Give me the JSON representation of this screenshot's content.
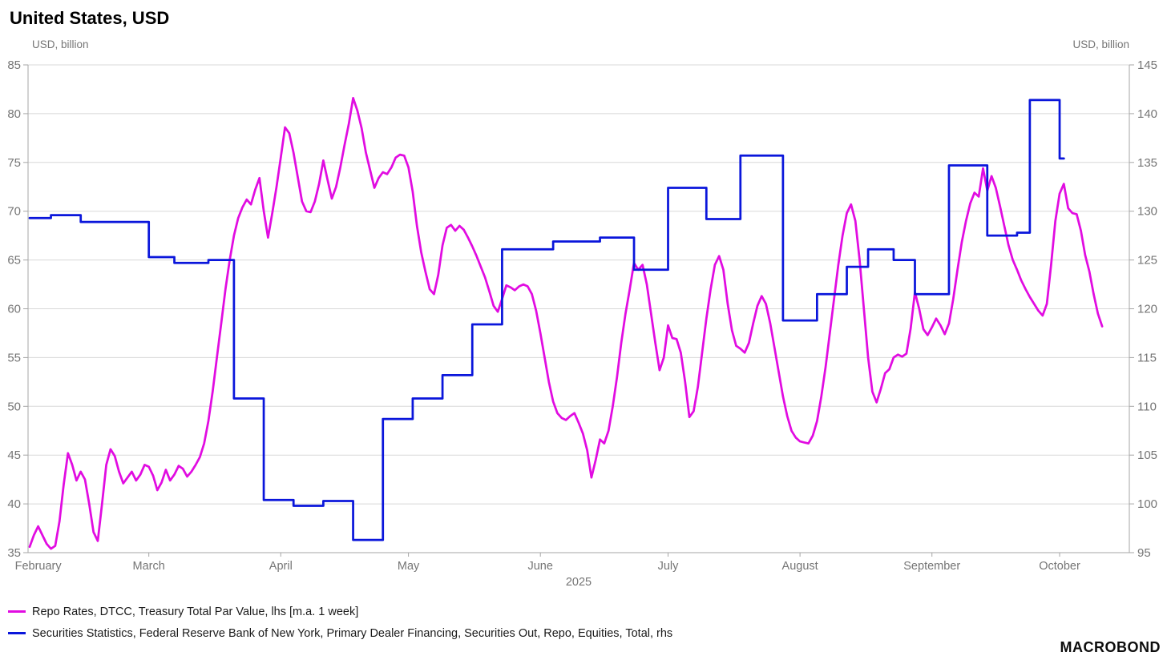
{
  "header": {
    "title": "United States, USD"
  },
  "logo": {
    "text": "MACROBOND"
  },
  "chart_data": {
    "type": "line",
    "title": "United States, USD",
    "grid": "horizontal",
    "legend_position": "bottom-left",
    "left_axis": {
      "label": "USD, billion",
      "min": 35,
      "max": 85,
      "tick_step": 5,
      "ticks": [
        35,
        40,
        45,
        50,
        55,
        60,
        65,
        70,
        75,
        80,
        85
      ]
    },
    "right_axis": {
      "label": "USD, billion",
      "min": 95,
      "max": 145,
      "tick_step": 5,
      "ticks": [
        95,
        100,
        105,
        110,
        115,
        120,
        125,
        130,
        135,
        140,
        145
      ]
    },
    "x_axis": {
      "year_label": "2025",
      "total_days": 258,
      "start": "2025-02-01",
      "months": [
        {
          "label": "February",
          "start_day": 0,
          "label_day": 2
        },
        {
          "label": "March",
          "start_day": 28
        },
        {
          "label": "April",
          "start_day": 59
        },
        {
          "label": "May",
          "start_day": 89
        },
        {
          "label": "June",
          "start_day": 120
        },
        {
          "label": "July",
          "start_day": 150
        },
        {
          "label": "August",
          "start_day": 181
        },
        {
          "label": "September",
          "start_day": 212
        },
        {
          "label": "October",
          "start_day": 242
        }
      ]
    },
    "series": [
      {
        "name": "Repo Rates, DTCC, Treasury Total Par Value, lhs [m.a. 1 week]",
        "color": "#E10CE1",
        "axis": "left",
        "style": "line",
        "start_day": 0,
        "values": [
          35.6,
          36.8,
          37.7,
          36.8,
          35.9,
          35.4,
          35.7,
          38.2,
          42.0,
          45.2,
          44.0,
          42.4,
          43.3,
          42.5,
          40.0,
          37.1,
          36.2,
          40.0,
          44.0,
          45.6,
          44.9,
          43.3,
          42.1,
          42.7,
          43.3,
          42.4,
          43.0,
          44.0,
          43.8,
          42.9,
          41.4,
          42.2,
          43.5,
          42.4,
          43.0,
          43.9,
          43.6,
          42.8,
          43.3,
          44.0,
          44.8,
          46.2,
          48.5,
          51.5,
          55.0,
          58.5,
          62.0,
          65.0,
          67.5,
          69.3,
          70.4,
          71.2,
          70.7,
          72.2,
          73.4,
          70.0,
          67.3,
          69.8,
          72.5,
          75.5,
          78.6,
          78.0,
          76.0,
          73.5,
          71.0,
          70.0,
          69.9,
          71.0,
          72.8,
          75.2,
          73.2,
          71.3,
          72.5,
          74.5,
          76.8,
          79.0,
          81.6,
          80.3,
          78.5,
          76.0,
          74.2,
          72.4,
          73.4,
          74.0,
          73.8,
          74.5,
          75.5,
          75.8,
          75.7,
          74.5,
          72.0,
          68.5,
          65.8,
          63.8,
          62.0,
          61.5,
          63.5,
          66.5,
          68.3,
          68.6,
          68.0,
          68.5,
          68.1,
          67.3,
          66.4,
          65.4,
          64.3,
          63.2,
          61.8,
          60.3,
          59.7,
          61.0,
          62.4,
          62.2,
          61.9,
          62.3,
          62.5,
          62.3,
          61.5,
          59.8,
          57.5,
          55.0,
          52.5,
          50.5,
          49.3,
          48.8,
          48.6,
          49.0,
          49.3,
          48.3,
          47.2,
          45.5,
          42.7,
          44.5,
          46.6,
          46.2,
          47.5,
          50.0,
          53.0,
          56.5,
          59.5,
          62.0,
          64.7,
          64.0,
          64.5,
          62.5,
          59.5,
          56.5,
          53.7,
          55.0,
          58.3,
          57.0,
          56.9,
          55.5,
          52.5,
          48.9,
          49.5,
          52.0,
          55.5,
          59.0,
          62.0,
          64.5,
          65.4,
          64.0,
          60.5,
          57.8,
          56.2,
          55.9,
          55.5,
          56.5,
          58.5,
          60.3,
          61.3,
          60.5,
          58.5,
          56.0,
          53.5,
          51.0,
          49.0,
          47.5,
          46.8,
          46.4,
          46.3,
          46.2,
          47.0,
          48.5,
          51.0,
          54.0,
          57.5,
          61.0,
          64.5,
          67.5,
          69.8,
          70.7,
          69.0,
          65.0,
          60.0,
          55.0,
          51.5,
          50.4,
          51.8,
          53.4,
          53.8,
          55.0,
          55.3,
          55.1,
          55.4,
          58.0,
          61.7,
          60.0,
          57.9,
          57.3,
          58.1,
          59.0,
          58.3,
          57.4,
          58.5,
          61.0,
          64.0,
          66.8,
          69.0,
          70.8,
          71.9,
          71.5,
          74.4,
          72.1,
          73.6,
          72.4,
          70.5,
          68.5,
          66.5,
          65.0,
          64.0,
          62.9,
          62.0,
          61.2,
          60.5,
          59.8,
          59.3,
          60.5,
          64.5,
          69.0,
          71.8,
          72.8,
          70.3,
          69.8,
          69.7,
          68.0,
          65.5,
          63.8,
          61.5,
          59.5,
          58.2
        ]
      },
      {
        "name": "Securities Statistics, Federal Reserve Bank of New York, Primary Dealer Financing, Securities Out, Repo, Equities, Total, rhs",
        "color": "#0A16DB",
        "axis": "right",
        "style": "step",
        "points": [
          [
            0,
            129.3
          ],
          [
            5,
            129.6
          ],
          [
            12,
            128.9
          ],
          [
            28,
            125.3
          ],
          [
            34,
            124.7
          ],
          [
            42,
            125.0
          ],
          [
            48,
            110.8
          ],
          [
            55,
            100.4
          ],
          [
            62,
            99.8
          ],
          [
            69,
            100.3
          ],
          [
            76,
            96.3
          ],
          [
            83,
            108.7
          ],
          [
            90,
            110.8
          ],
          [
            97,
            113.2
          ],
          [
            104,
            118.4
          ],
          [
            111,
            126.1
          ],
          [
            123,
            126.9
          ],
          [
            134,
            127.3
          ],
          [
            142,
            124.0
          ],
          [
            150,
            132.4
          ],
          [
            159,
            129.2
          ],
          [
            167,
            135.7
          ],
          [
            177,
            118.8
          ],
          [
            185,
            121.5
          ],
          [
            192,
            124.3
          ],
          [
            197,
            126.1
          ],
          [
            203,
            125.0
          ],
          [
            208,
            121.5
          ],
          [
            216,
            134.7
          ],
          [
            225,
            127.5
          ],
          [
            232,
            127.8
          ],
          [
            235,
            141.4
          ],
          [
            242,
            135.4
          ],
          [
            243,
            135.4
          ]
        ]
      }
    ],
    "colors": {
      "grid": "#D8D8D8",
      "axis": "#A6A6A6",
      "tick_text": "#757575",
      "title": "#000000"
    }
  }
}
